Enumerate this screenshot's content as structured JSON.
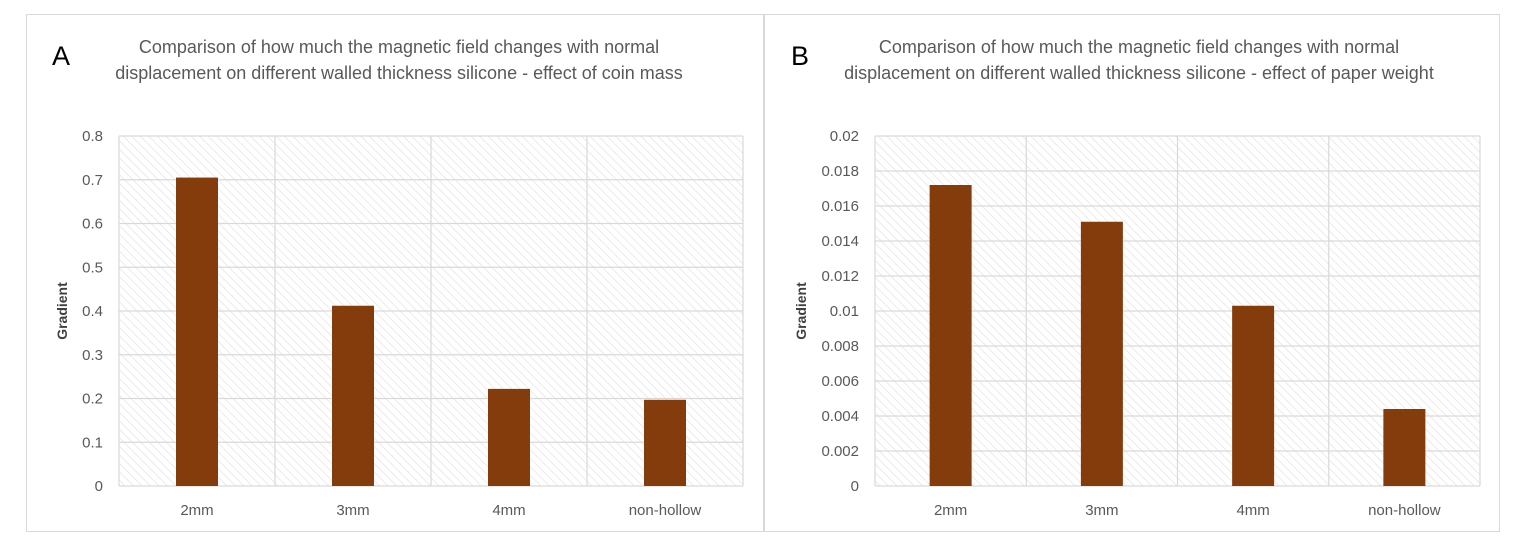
{
  "panels": [
    {
      "letter": "A",
      "title": "Comparison of how much the magnetic field changes with normal displacement on different walled thickness silicone - effect of coin mass"
    },
    {
      "letter": "B",
      "title": "Comparison of how much the magnetic field changes with normal displacement on different walled thickness silicone - effect of paper weight"
    }
  ],
  "chart_data": [
    {
      "type": "bar",
      "title": "Comparison of how much the magnetic field changes with normal displacement on different walled thickness silicone - effect of coin mass",
      "xlabel": "",
      "ylabel": "Gradient",
      "categories": [
        "2mm",
        "3mm",
        "4mm",
        "non-hollow"
      ],
      "values": [
        0.705,
        0.412,
        0.222,
        0.197
      ],
      "ylim": [
        0,
        0.8
      ],
      "yticks": [
        "0",
        "0.1",
        "0.2",
        "0.3",
        "0.4",
        "0.5",
        "0.6",
        "0.7",
        "0.8"
      ],
      "grid": true,
      "bar_color": "#843c0c",
      "legend": "none"
    },
    {
      "type": "bar",
      "title": "Comparison of how much the magnetic field changes with normal displacement on different walled thickness silicone - effect of paper weight",
      "xlabel": "",
      "ylabel": "Gradient",
      "categories": [
        "2mm",
        "3mm",
        "4mm",
        "non-hollow"
      ],
      "values": [
        0.0172,
        0.0151,
        0.0103,
        0.0044
      ],
      "ylim": [
        0,
        0.02
      ],
      "yticks": [
        "0",
        "0.002",
        "0.004",
        "0.006",
        "0.008",
        "0.01",
        "0.012",
        "0.014",
        "0.016",
        "0.018",
        "0.02"
      ],
      "grid": true,
      "bar_color": "#843c0c",
      "legend": "none"
    }
  ],
  "colors": {
    "bar": "#843c0c",
    "grid": "#d9d9d9",
    "hatch": "#e3e3e3",
    "text": "#595959"
  }
}
